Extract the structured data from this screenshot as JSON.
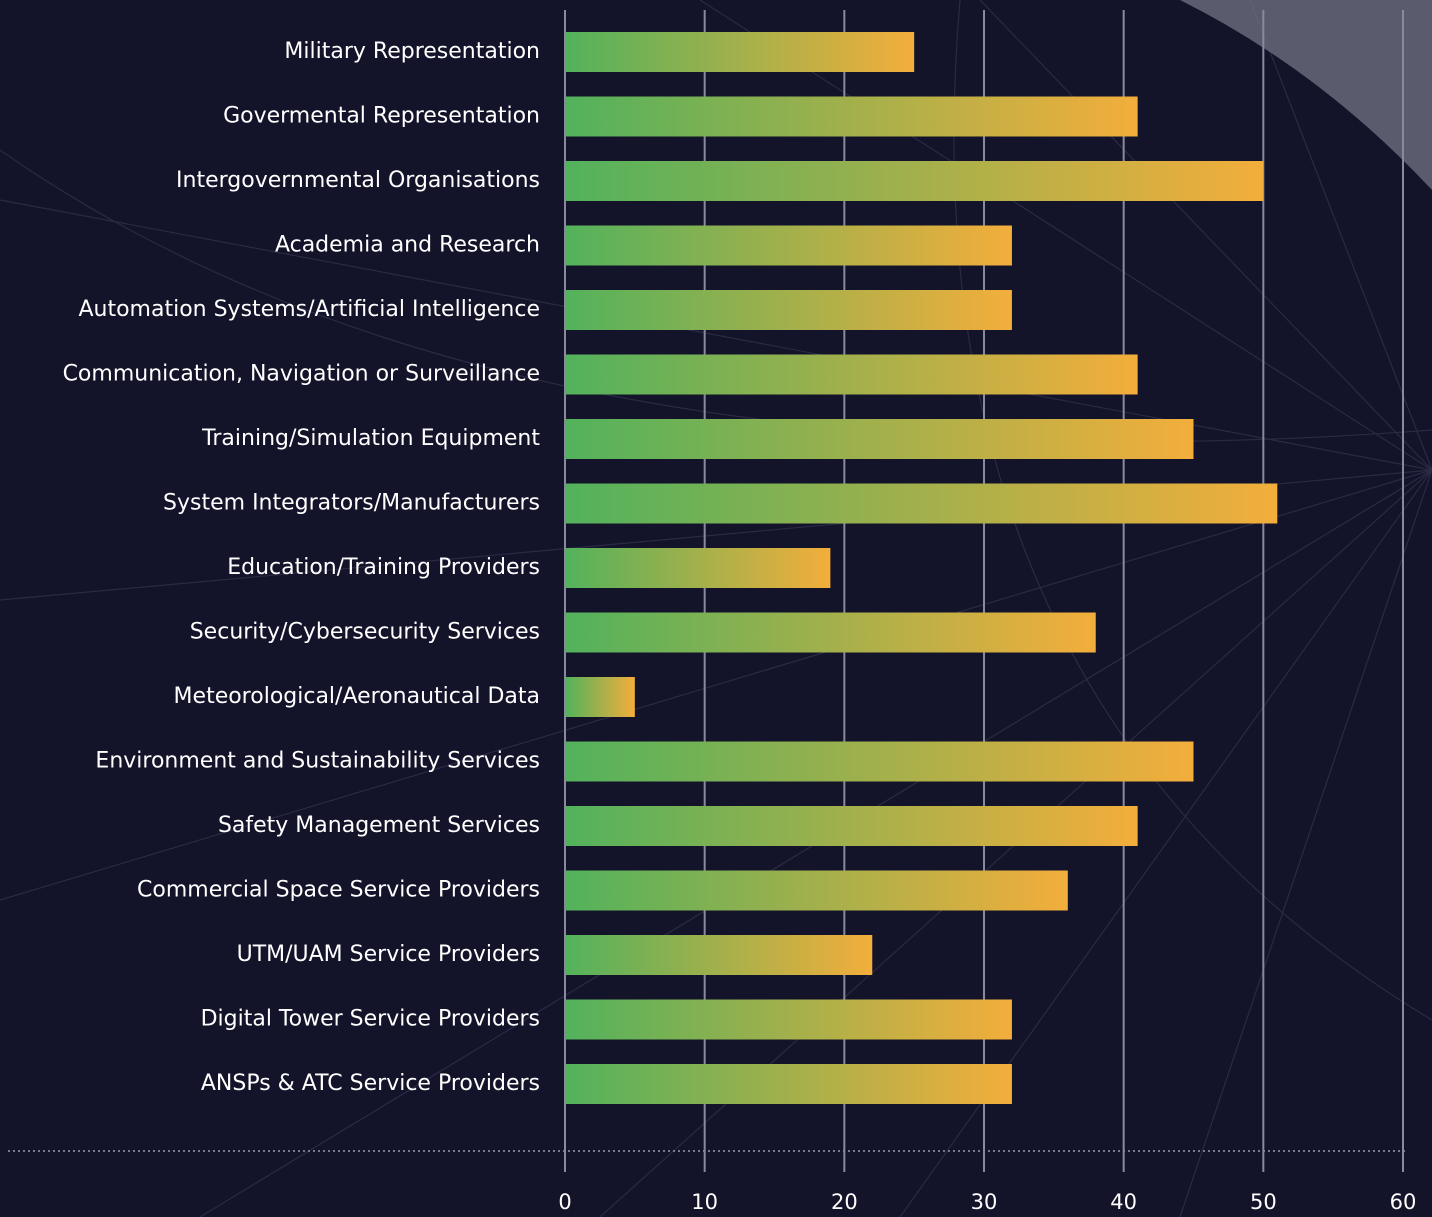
{
  "chart_data": {
    "type": "bar",
    "orientation": "horizontal",
    "categories": [
      "Military Representation",
      "Govermental Representation",
      "Intergovernmental Organisations",
      "Academia and Research",
      "Automation Systems/Artificial Intelligence",
      "Communication, Navigation or Surveillance",
      "Training/Simulation Equipment",
      "System Integrators/Manufacturers",
      "Education/Training Providers",
      "Security/Cybersecurity Services",
      "Meteorological/Aeronautical Data",
      "Environment and Sustainability Services",
      "Safety Management Services",
      "Commercial Space Service Providers",
      "UTM/UAM Service Providers",
      "Digital Tower Service Providers",
      "ANSPs & ATC Service Providers"
    ],
    "values": [
      25,
      41,
      50,
      32,
      32,
      41,
      45,
      51,
      19,
      38,
      5,
      45,
      41,
      36,
      22,
      32,
      32
    ],
    "gradient": [
      "#52b25c",
      "#f3ae3b"
    ],
    "xlim": [
      0,
      60
    ],
    "xticks": [
      0,
      10,
      20,
      30,
      40,
      50,
      60
    ],
    "grid": true
  }
}
